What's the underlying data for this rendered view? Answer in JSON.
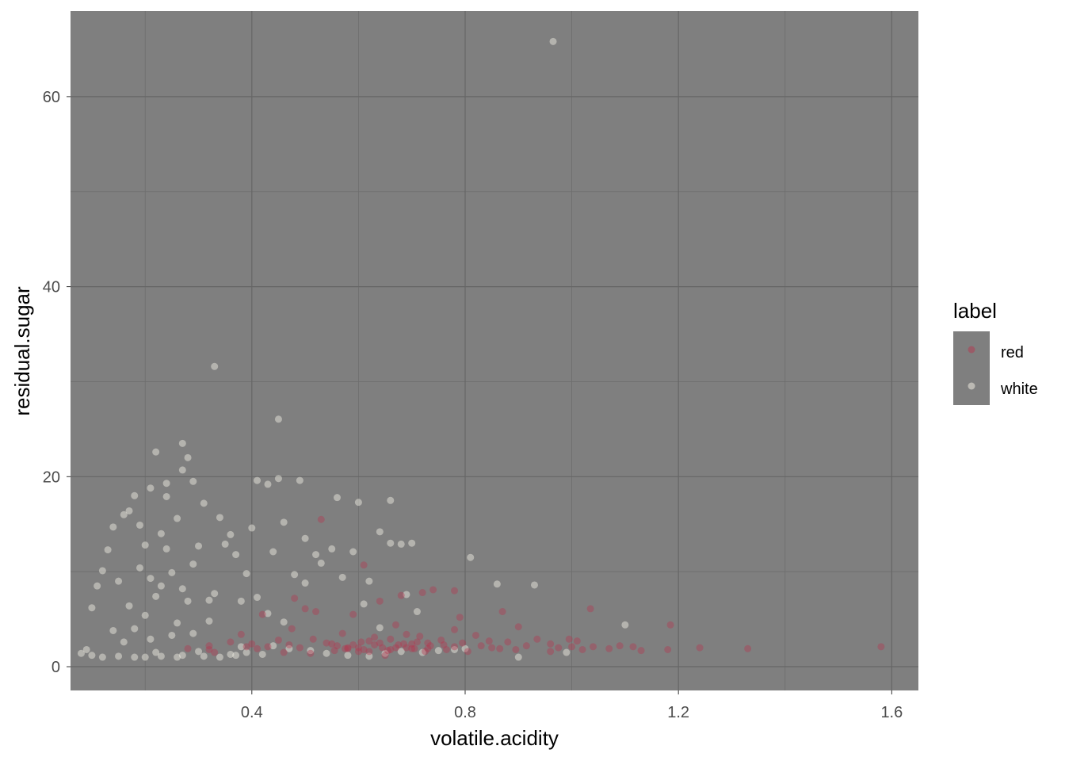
{
  "chart_data": {
    "type": "scatter",
    "xlabel": "volatile.acidity",
    "ylabel": "residual.sugar",
    "xlim": [
      0.06,
      1.65
    ],
    "ylim": [
      -2.5,
      69
    ],
    "x_ticks": [
      {
        "value": 0.4,
        "label": "0.4"
      },
      {
        "value": 0.8,
        "label": "0.8"
      },
      {
        "value": 1.2,
        "label": "1.2"
      },
      {
        "value": 1.6,
        "label": "1.6"
      }
    ],
    "y_ticks": [
      {
        "value": 0,
        "label": "0"
      },
      {
        "value": 20,
        "label": "20"
      },
      {
        "value": 40,
        "label": "40"
      },
      {
        "value": 60,
        "label": "60"
      }
    ],
    "grid": true,
    "panel_color": "#7f7f7f",
    "legend": {
      "title": "label",
      "position": "right",
      "entries": [
        {
          "name": "red",
          "color": "#b5374f"
        },
        {
          "name": "white",
          "color": "#f7f3e8"
        }
      ]
    },
    "series": [
      {
        "name": "red",
        "color": "#b5374f",
        "points": [
          [
            0.7,
            1.9
          ],
          [
            0.88,
            2.6
          ],
          [
            0.76,
            2.3
          ],
          [
            0.28,
            1.9
          ],
          [
            0.66,
            1.8
          ],
          [
            0.6,
            1.6
          ],
          [
            0.65,
            1.2
          ],
          [
            0.58,
            2.0
          ],
          [
            0.5,
            6.1
          ],
          [
            0.61,
            1.8
          ],
          [
            0.62,
            1.6
          ],
          [
            0.56,
            2.2
          ],
          [
            0.59,
            2.3
          ],
          [
            0.32,
            1.8
          ],
          [
            0.39,
            2.1
          ],
          [
            0.43,
            2.1
          ],
          [
            0.49,
            2.0
          ],
          [
            0.4,
            2.4
          ],
          [
            0.41,
            1.9
          ],
          [
            0.71,
            2.6
          ],
          [
            0.645,
            2.0
          ],
          [
            0.675,
            2.3
          ],
          [
            0.685,
            2.4
          ],
          [
            0.655,
            1.7
          ],
          [
            0.605,
            2.6
          ],
          [
            0.32,
            2.2
          ],
          [
            0.705,
            1.9
          ],
          [
            0.63,
            2.3
          ],
          [
            0.67,
            4.4
          ],
          [
            0.69,
            2.0
          ],
          [
            0.73,
            2.5
          ],
          [
            0.78,
            2.1
          ],
          [
            0.83,
            2.2
          ],
          [
            0.915,
            2.2
          ],
          [
            0.96,
            2.4
          ],
          [
            0.975,
            2.0
          ],
          [
            1.0,
            2.1
          ],
          [
            1.02,
            1.8
          ],
          [
            1.04,
            2.1
          ],
          [
            1.07,
            1.9
          ],
          [
            1.09,
            2.2
          ],
          [
            1.115,
            2.1
          ],
          [
            1.13,
            1.7
          ],
          [
            1.18,
            1.8
          ],
          [
            1.24,
            2.0
          ],
          [
            1.33,
            1.9
          ],
          [
            1.58,
            2.1
          ],
          [
            1.185,
            4.4
          ],
          [
            0.74,
            8.1
          ],
          [
            0.78,
            8.0
          ],
          [
            0.72,
            7.8
          ],
          [
            0.68,
            7.5
          ],
          [
            0.64,
            6.9
          ],
          [
            0.53,
            15.5
          ],
          [
            0.61,
            10.7
          ],
          [
            0.48,
            7.2
          ],
          [
            0.52,
            5.8
          ],
          [
            0.59,
            5.5
          ],
          [
            0.79,
            5.2
          ],
          [
            0.87,
            5.8
          ],
          [
            0.63,
            3.1
          ],
          [
            0.57,
            3.5
          ],
          [
            0.82,
            3.3
          ],
          [
            0.45,
            2.8
          ],
          [
            0.46,
            1.5
          ],
          [
            0.51,
            1.4
          ],
          [
            0.54,
            2.5
          ],
          [
            0.555,
            1.7
          ],
          [
            0.725,
            1.6
          ],
          [
            0.755,
            2.8
          ],
          [
            0.805,
            1.6
          ],
          [
            0.85,
            2.0
          ],
          [
            0.895,
            1.8
          ],
          [
            0.935,
            2.9
          ],
          [
            0.995,
            2.9
          ],
          [
            1.035,
            6.1
          ],
          [
            0.66,
            2.9
          ],
          [
            0.715,
            3.2
          ],
          [
            0.735,
            2.2
          ],
          [
            0.765,
            1.8
          ],
          [
            0.795,
            2.5
          ],
          [
            0.845,
            2.7
          ],
          [
            0.865,
            1.9
          ],
          [
            0.33,
            1.5
          ],
          [
            0.36,
            2.6
          ],
          [
            0.38,
            3.4
          ],
          [
            0.42,
            5.5
          ],
          [
            0.475,
            4.0
          ],
          [
            0.515,
            2.9
          ],
          [
            0.575,
            1.9
          ],
          [
            0.62,
            2.7
          ],
          [
            0.6,
            2.0
          ],
          [
            0.64,
            2.5
          ],
          [
            0.67,
            2.0
          ],
          [
            0.7,
            2.4
          ],
          [
            0.73,
            1.9
          ],
          [
            0.47,
            2.3
          ],
          [
            0.55,
            2.4
          ],
          [
            0.58,
            1.9
          ],
          [
            0.69,
            3.4
          ],
          [
            0.78,
            3.9
          ],
          [
            0.9,
            4.2
          ],
          [
            0.96,
            1.6
          ],
          [
            1.01,
            2.7
          ]
        ]
      },
      {
        "name": "white",
        "color": "#f7f3e8",
        "points": [
          [
            0.27,
            20.7
          ],
          [
            0.3,
            1.6
          ],
          [
            0.28,
            6.9
          ],
          [
            0.23,
            8.5
          ],
          [
            0.32,
            7.0
          ],
          [
            0.22,
            1.5
          ],
          [
            0.27,
            1.2
          ],
          [
            0.24,
            12.4
          ],
          [
            0.26,
            4.6
          ],
          [
            0.21,
            9.3
          ],
          [
            0.19,
            14.9
          ],
          [
            0.31,
            17.2
          ],
          [
            0.25,
            3.3
          ],
          [
            0.2,
            5.4
          ],
          [
            0.29,
            10.8
          ],
          [
            0.17,
            16.4
          ],
          [
            0.35,
            12.9
          ],
          [
            0.36,
            1.3
          ],
          [
            0.33,
            7.7
          ],
          [
            0.38,
            2.1
          ],
          [
            0.41,
            19.6
          ],
          [
            0.45,
            19.8
          ],
          [
            0.49,
            19.6
          ],
          [
            0.43,
            19.2
          ],
          [
            0.4,
            14.6
          ],
          [
            0.44,
            12.1
          ],
          [
            0.46,
            15.2
          ],
          [
            0.5,
            13.5
          ],
          [
            0.52,
            11.8
          ],
          [
            0.55,
            12.4
          ],
          [
            0.48,
            9.7
          ],
          [
            0.5,
            8.8
          ],
          [
            0.53,
            10.9
          ],
          [
            0.56,
            17.8
          ],
          [
            0.6,
            17.3
          ],
          [
            0.66,
            17.5
          ],
          [
            0.64,
            14.2
          ],
          [
            0.66,
            13.0
          ],
          [
            0.68,
            12.9
          ],
          [
            0.7,
            13.0
          ],
          [
            0.81,
            11.5
          ],
          [
            0.59,
            12.1
          ],
          [
            0.62,
            9.0
          ],
          [
            0.57,
            9.4
          ],
          [
            0.86,
            8.7
          ],
          [
            0.93,
            8.6
          ],
          [
            0.69,
            7.6
          ],
          [
            0.61,
            6.6
          ],
          [
            0.71,
            5.8
          ],
          [
            0.64,
            4.1
          ],
          [
            0.965,
            65.8
          ],
          [
            0.33,
            31.6
          ],
          [
            0.45,
            26.05
          ],
          [
            0.27,
            23.5
          ],
          [
            0.28,
            22.0
          ],
          [
            0.22,
            22.6
          ],
          [
            0.29,
            19.5
          ],
          [
            0.24,
            19.3
          ],
          [
            0.21,
            18.8
          ],
          [
            0.18,
            18.0
          ],
          [
            0.16,
            16.0
          ],
          [
            0.14,
            14.7
          ],
          [
            0.13,
            12.3
          ],
          [
            0.12,
            10.1
          ],
          [
            0.11,
            8.5
          ],
          [
            0.1,
            6.2
          ],
          [
            0.09,
            1.8
          ],
          [
            0.08,
            1.4
          ],
          [
            0.1,
            1.2
          ],
          [
            0.12,
            1.0
          ],
          [
            0.15,
            1.1
          ],
          [
            0.18,
            1.0
          ],
          [
            0.2,
            1.0
          ],
          [
            0.23,
            1.1
          ],
          [
            0.26,
            1.0
          ],
          [
            0.31,
            1.1
          ],
          [
            0.34,
            1.0
          ],
          [
            0.37,
            1.2
          ],
          [
            0.39,
            1.5
          ],
          [
            0.42,
            1.3
          ],
          [
            0.44,
            2.2
          ],
          [
            0.47,
            1.9
          ],
          [
            0.51,
            1.7
          ],
          [
            0.54,
            1.4
          ],
          [
            0.58,
            1.2
          ],
          [
            0.62,
            1.1
          ],
          [
            0.65,
            1.4
          ],
          [
            0.68,
            1.6
          ],
          [
            0.72,
            1.5
          ],
          [
            0.75,
            1.7
          ],
          [
            0.78,
            1.8
          ],
          [
            0.8,
            1.9
          ],
          [
            0.9,
            1.0
          ],
          [
            0.99,
            1.5
          ],
          [
            1.1,
            4.4
          ],
          [
            0.37,
            11.8
          ],
          [
            0.39,
            9.8
          ],
          [
            0.41,
            7.3
          ],
          [
            0.43,
            5.6
          ],
          [
            0.46,
            4.7
          ],
          [
            0.25,
            9.9
          ],
          [
            0.22,
            7.4
          ],
          [
            0.3,
            12.7
          ],
          [
            0.34,
            15.7
          ],
          [
            0.36,
            13.9
          ],
          [
            0.19,
            10.4
          ],
          [
            0.15,
            9.0
          ],
          [
            0.17,
            6.4
          ],
          [
            0.26,
            15.6
          ],
          [
            0.24,
            17.9
          ],
          [
            0.2,
            12.8
          ],
          [
            0.32,
            4.8
          ],
          [
            0.27,
            8.2
          ],
          [
            0.23,
            14.0
          ],
          [
            0.29,
            3.5
          ],
          [
            0.21,
            2.9
          ],
          [
            0.18,
            4.0
          ],
          [
            0.16,
            2.6
          ],
          [
            0.14,
            3.8
          ],
          [
            0.38,
            6.9
          ]
        ]
      }
    ]
  }
}
